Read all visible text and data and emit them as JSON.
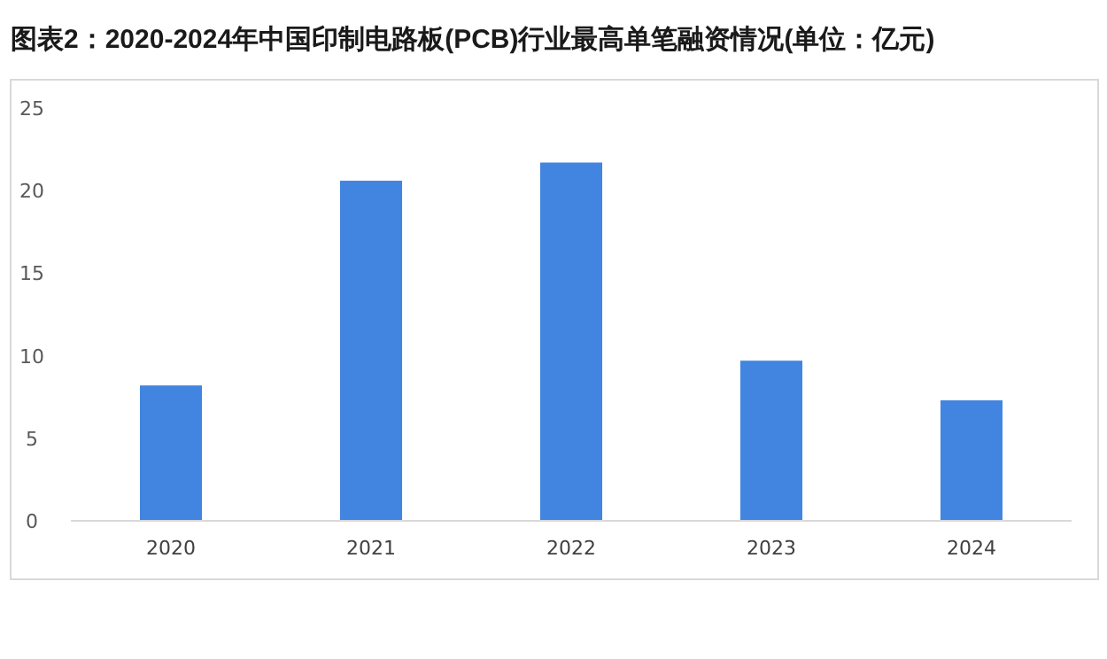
{
  "chart_data": {
    "type": "bar",
    "title": "图表2：2020-2024年中国印制电路板(PCB)行业最高单笔融资情况(单位：亿元)",
    "categories": [
      "2020",
      "2021",
      "2022",
      "2023",
      "2024"
    ],
    "values": [
      8.2,
      20.6,
      21.7,
      9.7,
      7.3
    ],
    "color": "#4285e0",
    "ylim": [
      0,
      25
    ],
    "yticks": [
      0,
      5,
      10,
      15,
      20,
      25
    ]
  }
}
